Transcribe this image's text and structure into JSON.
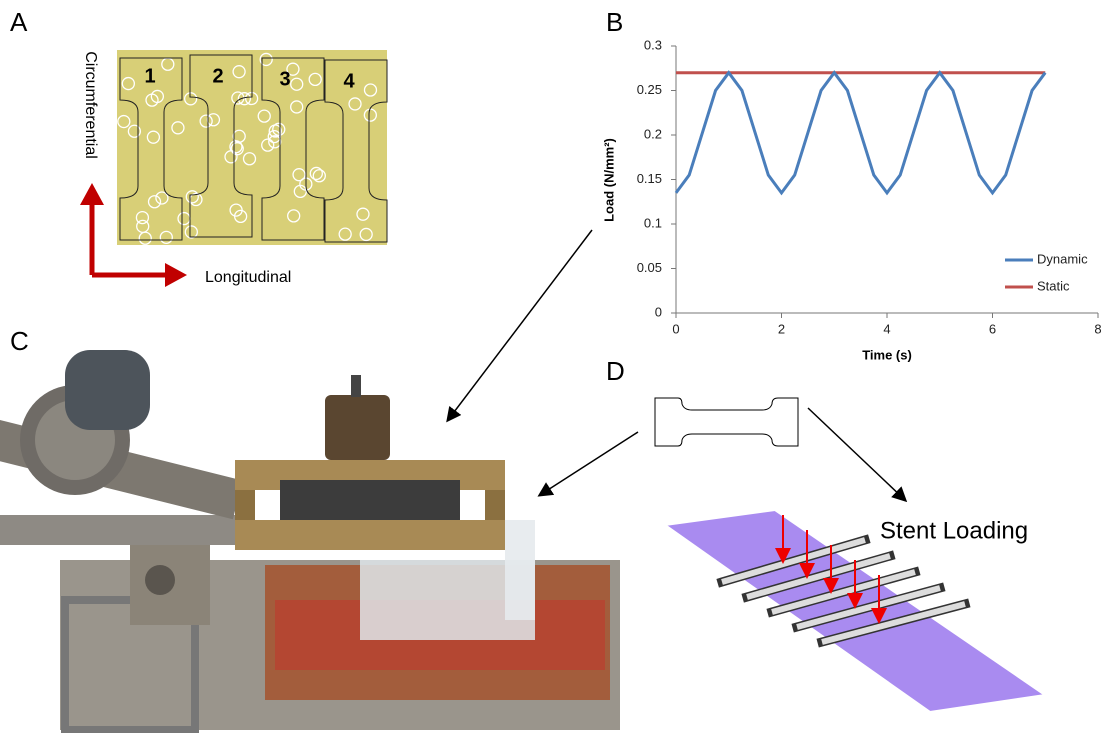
{
  "panels": {
    "A": {
      "label": "A",
      "specimens": [
        "1",
        "2",
        "3",
        "4"
      ],
      "vertical_axis": "Circumferential",
      "horizontal_axis": "Longitudinal"
    },
    "B": {
      "label": "B"
    },
    "C": {
      "label": "C"
    },
    "D": {
      "label": "D",
      "caption": "Stent Loading"
    }
  },
  "chart_data": {
    "type": "line",
    "x_label": "Time (s)",
    "y_label": "Load (N/mm²)",
    "x": [
      0,
      0.25,
      0.5,
      0.75,
      1,
      1.25,
      1.5,
      1.75,
      2,
      2.25,
      2.5,
      2.75,
      3,
      3.25,
      3.5,
      3.75,
      4,
      4.25,
      4.5,
      4.75,
      5,
      5.25,
      5.5,
      5.75,
      6,
      6.25,
      6.5,
      6.75,
      7
    ],
    "series": [
      {
        "name": "Dynamic",
        "color": "#4a7ebb",
        "values": [
          0.135,
          0.155,
          0.2025,
          0.25,
          0.27,
          0.25,
          0.2025,
          0.155,
          0.135,
          0.155,
          0.2025,
          0.25,
          0.27,
          0.25,
          0.2025,
          0.155,
          0.135,
          0.155,
          0.2025,
          0.25,
          0.27,
          0.25,
          0.2025,
          0.155,
          0.135,
          0.155,
          0.2025,
          0.25,
          0.27
        ]
      },
      {
        "name": "Static",
        "color": "#c0504d",
        "values": [
          0.27,
          0.27,
          0.27,
          0.27,
          0.27,
          0.27,
          0.27,
          0.27,
          0.27,
          0.27,
          0.27,
          0.27,
          0.27,
          0.27,
          0.27,
          0.27,
          0.27,
          0.27,
          0.27,
          0.27,
          0.27,
          0.27,
          0.27,
          0.27,
          0.27,
          0.27,
          0.27,
          0.27,
          0.27
        ]
      }
    ],
    "xlim": [
      0,
      8
    ],
    "xticks": [
      0,
      2,
      4,
      6,
      8
    ],
    "ylim": [
      0,
      0.3
    ],
    "yticks": [
      0,
      0.05,
      0.1,
      0.15,
      0.2,
      0.25,
      0.3
    ],
    "legend": "lower-right"
  }
}
